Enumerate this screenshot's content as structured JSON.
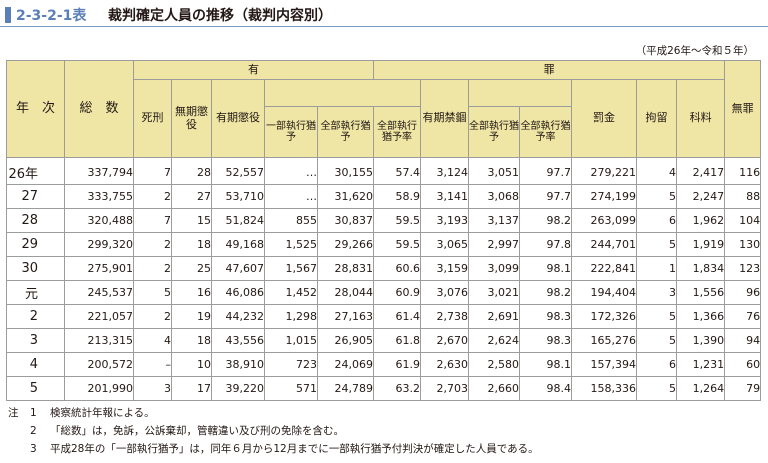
{
  "title": {
    "number": "2-3-2-1表",
    "text": "裁判確定人員の推移（裁判内容別）"
  },
  "period": "（平成26年～令和５年）",
  "header": {
    "year": "年　次",
    "total": "総　数",
    "guilty": "有",
    "guilty2": "罪",
    "death": "死刑",
    "life": "無期懲役",
    "imprisonment": "有期懲役",
    "partial_suspend": "一部執行猶　予",
    "full_suspend": "全部執行猶　予",
    "full_suspend_rate": "全部執行猶予率",
    "confinement": "有期禁錮",
    "conf_full_suspend": "全部執行猶　予",
    "conf_full_suspend_rate": "全部執行猶予率",
    "fine": "罰金",
    "detention": "拘留",
    "petty_fine": "科料",
    "innocent": "無罪"
  },
  "rows": [
    {
      "year": "26年",
      "total": "337,794",
      "death": "7",
      "life": "28",
      "imp": "52,557",
      "partial": "…",
      "full": "30,155",
      "rate": "57.4",
      "conf": "3,124",
      "conf_full": "3,051",
      "conf_rate": "97.7",
      "fine": "279,221",
      "det": "4",
      "petty": "2,417",
      "inn": "116"
    },
    {
      "year": "27",
      "total": "333,755",
      "death": "2",
      "life": "27",
      "imp": "53,710",
      "partial": "…",
      "full": "31,620",
      "rate": "58.9",
      "conf": "3,141",
      "conf_full": "3,068",
      "conf_rate": "97.7",
      "fine": "274,199",
      "det": "5",
      "petty": "2,247",
      "inn": "88"
    },
    {
      "year": "28",
      "total": "320,488",
      "death": "7",
      "life": "15",
      "imp": "51,824",
      "partial": "855",
      "full": "30,837",
      "rate": "59.5",
      "conf": "3,193",
      "conf_full": "3,137",
      "conf_rate": "98.2",
      "fine": "263,099",
      "det": "6",
      "petty": "1,962",
      "inn": "104"
    },
    {
      "year": "29",
      "total": "299,320",
      "death": "2",
      "life": "18",
      "imp": "49,168",
      "partial": "1,525",
      "full": "29,266",
      "rate": "59.5",
      "conf": "3,065",
      "conf_full": "2,997",
      "conf_rate": "97.8",
      "fine": "244,701",
      "det": "5",
      "petty": "1,919",
      "inn": "130"
    },
    {
      "year": "30",
      "total": "275,901",
      "death": "2",
      "life": "25",
      "imp": "47,607",
      "partial": "1,567",
      "full": "28,831",
      "rate": "60.6",
      "conf": "3,159",
      "conf_full": "3,099",
      "conf_rate": "98.1",
      "fine": "222,841",
      "det": "1",
      "petty": "1,834",
      "inn": "123"
    },
    {
      "year": "元",
      "total": "245,537",
      "death": "5",
      "life": "16",
      "imp": "46,086",
      "partial": "1,452",
      "full": "28,044",
      "rate": "60.9",
      "conf": "3,076",
      "conf_full": "3,021",
      "conf_rate": "98.2",
      "fine": "194,404",
      "det": "3",
      "petty": "1,556",
      "inn": "96"
    },
    {
      "year": "2",
      "total": "221,057",
      "death": "2",
      "life": "19",
      "imp": "44,232",
      "partial": "1,298",
      "full": "27,163",
      "rate": "61.4",
      "conf": "2,738",
      "conf_full": "2,691",
      "conf_rate": "98.3",
      "fine": "172,326",
      "det": "5",
      "petty": "1,366",
      "inn": "76"
    },
    {
      "year": "3",
      "total": "213,315",
      "death": "4",
      "life": "18",
      "imp": "43,556",
      "partial": "1,015",
      "full": "26,905",
      "rate": "61.8",
      "conf": "2,670",
      "conf_full": "2,624",
      "conf_rate": "98.3",
      "fine": "165,276",
      "det": "5",
      "petty": "1,390",
      "inn": "94"
    },
    {
      "year": "4",
      "total": "200,572",
      "death": "–",
      "life": "10",
      "imp": "38,910",
      "partial": "723",
      "full": "24,069",
      "rate": "61.9",
      "conf": "2,630",
      "conf_full": "2,580",
      "conf_rate": "98.1",
      "fine": "157,394",
      "det": "6",
      "petty": "1,231",
      "inn": "60"
    },
    {
      "year": "5",
      "total": "201,990",
      "death": "3",
      "life": "17",
      "imp": "39,220",
      "partial": "571",
      "full": "24,789",
      "rate": "63.2",
      "conf": "2,703",
      "conf_full": "2,660",
      "conf_rate": "98.4",
      "fine": "158,336",
      "det": "5",
      "petty": "1,264",
      "inn": "79"
    }
  ],
  "notes": {
    "head": "注",
    "items": [
      {
        "num": "1",
        "text": "検察統計年報による。"
      },
      {
        "num": "2",
        "text": "「総数」は，免訴，公訴棄却，管轄違い及び刑の免除を含む。"
      },
      {
        "num": "3",
        "text": "平成28年の「一部執行猶予」は，同年６月から12月までに一部執行猶予付判決が確定した人員である。"
      }
    ]
  },
  "colors": {
    "accent": "#5b7fb8",
    "header_bg": "#efe6a5"
  }
}
